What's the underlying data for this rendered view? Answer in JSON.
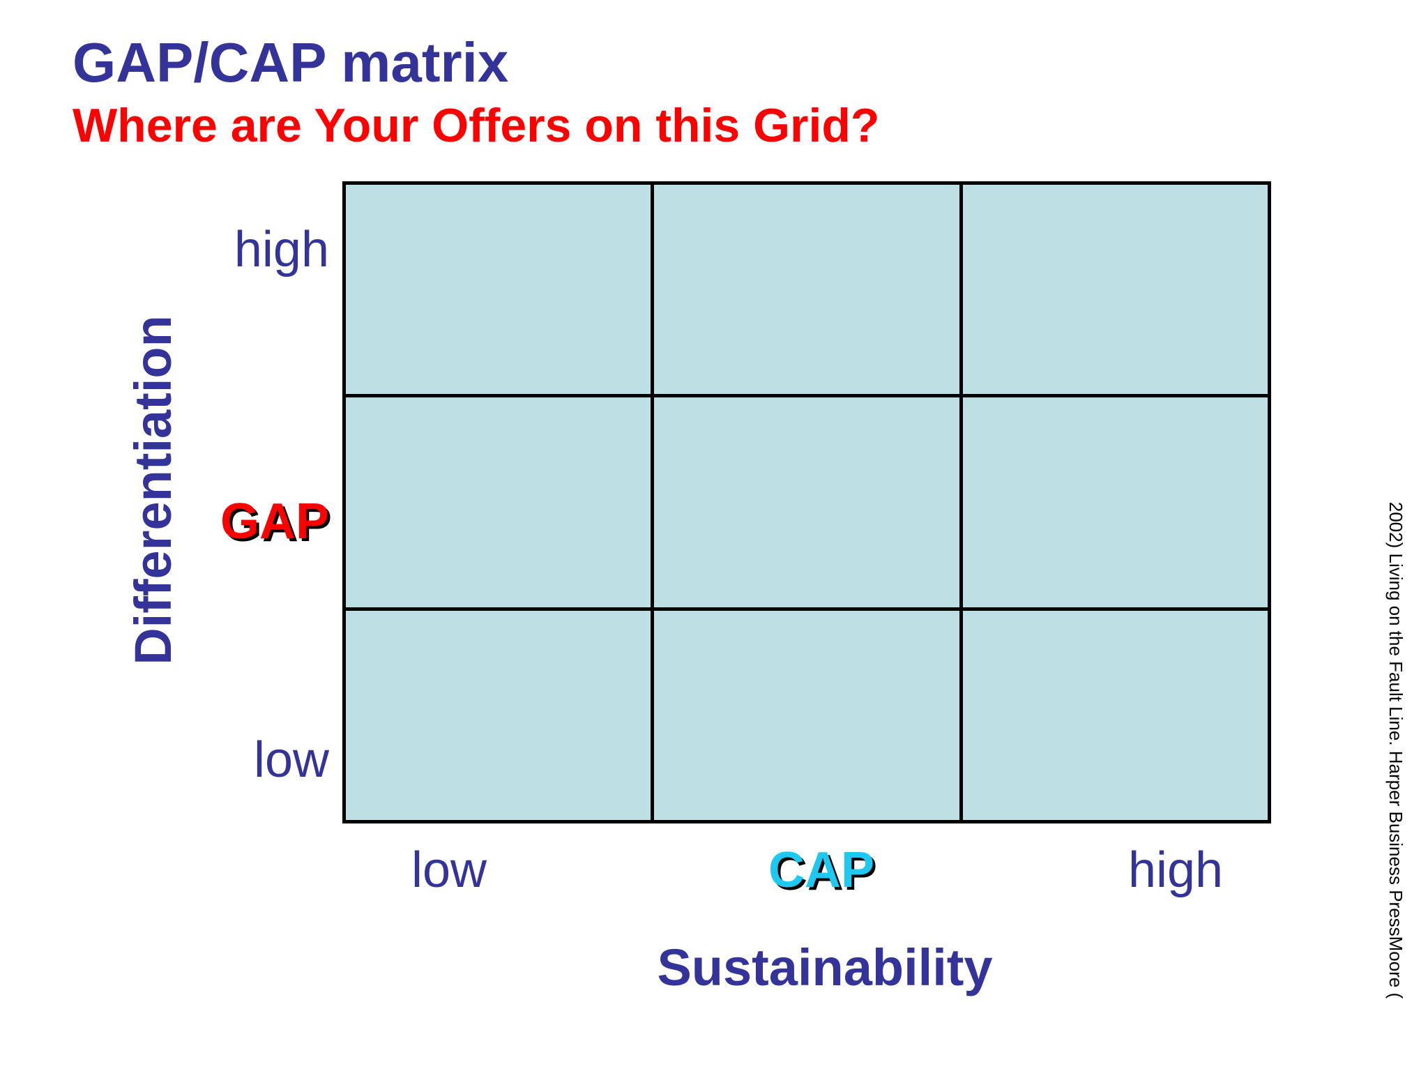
{
  "slide": {
    "title": "GAP/CAP matrix",
    "subtitle": "Where are Your Offers on this Grid?"
  },
  "matrix": {
    "rows": 3,
    "columns": 3,
    "cell_color": "#bce0e3",
    "y_axis": {
      "label": "Differentiation",
      "ticks": {
        "high": "high",
        "mid": "GAP",
        "low": "low"
      }
    },
    "x_axis": {
      "label": "Sustainability",
      "ticks": {
        "low": "low",
        "mid": "CAP",
        "high": "high"
      }
    }
  },
  "source_note": "2002) Living on the Fault Line. Harper Business PressMoore (",
  "colors": {
    "title": "#333399",
    "subtitle": "#ff0000",
    "gap": "#ff0000",
    "cap": "#1ec8f0"
  }
}
